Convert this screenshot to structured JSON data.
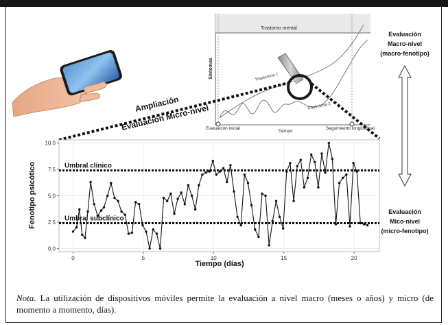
{
  "figure": {
    "amp_line1": "Ampliación",
    "amp_line2": "Evaluación Micro-nivel",
    "macro_label_lines": [
      "Evaluación",
      "Macro-nivel",
      "(macro-fenotipo)"
    ],
    "micro_label_lines": [
      "Evaluación",
      "Mico-nivel",
      "(micro-fenotipo)"
    ],
    "inset": {
      "band_label": "Trastorno mental",
      "ylabel": "Síntomas",
      "xlabel": "Tiempo",
      "traj1": "Trayectoria 1",
      "traj2": "Trayectoria 2",
      "start_label": "Evaluación inicial",
      "end_label": "Seguimiento longitudinal"
    }
  },
  "chart_data": {
    "type": "line",
    "xlabel": "Tiempo (días)",
    "ylabel": "Fenotipo psicótico",
    "xlim": [
      -1,
      21.8
    ],
    "ylim": [
      -0.3,
      10.3
    ],
    "x_ticks": [
      "0",
      "5",
      "10",
      "15",
      "20"
    ],
    "y_ticks": [
      "0.0",
      "2.5",
      "5.0",
      "7.5",
      "10.0"
    ],
    "thresholds": [
      {
        "label": "Umbral clínico",
        "y": 7.4
      },
      {
        "label": "Umbral subclínico",
        "y": 2.4
      }
    ],
    "series": [
      {
        "x": [
          0,
          0.25,
          0.45,
          0.65,
          0.85,
          1.05,
          1.25,
          1.5,
          1.75,
          2.0,
          2.2,
          2.45,
          2.7,
          2.95,
          3.2,
          3.45,
          3.7,
          3.95,
          4.2,
          4.45,
          4.7,
          4.95,
          5.2,
          5.45,
          5.7,
          5.95,
          6.2,
          6.45,
          6.7,
          6.95,
          7.2,
          7.45,
          7.7,
          7.95,
          8.2,
          8.45,
          8.7,
          8.95,
          9.2,
          9.45,
          9.7,
          9.95,
          10.2,
          10.45,
          10.7,
          10.95,
          11.2,
          11.45,
          11.7,
          11.95,
          12.2,
          12.45,
          12.7,
          12.95,
          13.2,
          13.45,
          13.7,
          13.95,
          14.2,
          14.45,
          14.7,
          14.95,
          15.2,
          15.45,
          15.7,
          15.95,
          16.2,
          16.45,
          16.7,
          16.95,
          17.2,
          17.45,
          17.7,
          17.95,
          18.2,
          18.45,
          18.7,
          18.95,
          19.2,
          19.45,
          19.7,
          19.95,
          20.2,
          20.45,
          20.7,
          20.95
        ],
        "y": [
          1.6,
          2.0,
          3.7,
          1.3,
          1.0,
          3.5,
          6.3,
          4.2,
          3.1,
          3.6,
          3.9,
          5.0,
          6.2,
          4.8,
          4.5,
          3.5,
          3.2,
          1.4,
          1.5,
          4.4,
          4.2,
          2.2,
          1.6,
          0.0,
          1.8,
          1.4,
          0.0,
          4.8,
          4.5,
          5.2,
          3.3,
          4.7,
          5.3,
          4.2,
          6.0,
          5.0,
          3.7,
          6.0,
          7.0,
          7.2,
          7.3,
          8.3,
          7.0,
          7.3,
          7.6,
          6.3,
          7.9,
          5.4,
          3.0,
          2.2,
          7.0,
          6.2,
          4.1,
          1.8,
          1.1,
          5.2,
          5.0,
          0.3,
          2.6,
          4.5,
          3.0,
          1.9,
          7.3,
          8.1,
          4.5,
          7.8,
          8.4,
          5.8,
          6.7,
          8.9,
          8.2,
          5.8,
          9.0,
          7.2,
          10.0,
          8.5,
          2.3,
          6.2,
          6.7,
          7.0,
          2.1,
          8.1,
          7.3,
          2.4,
          2.3,
          2.2
        ]
      }
    ]
  },
  "caption": {
    "nota": "Nota",
    "text": ". La utilización de dispositivos móviles permite la evaluación a nivel macro (meses o años) y micro (de momento a momento, días)."
  }
}
